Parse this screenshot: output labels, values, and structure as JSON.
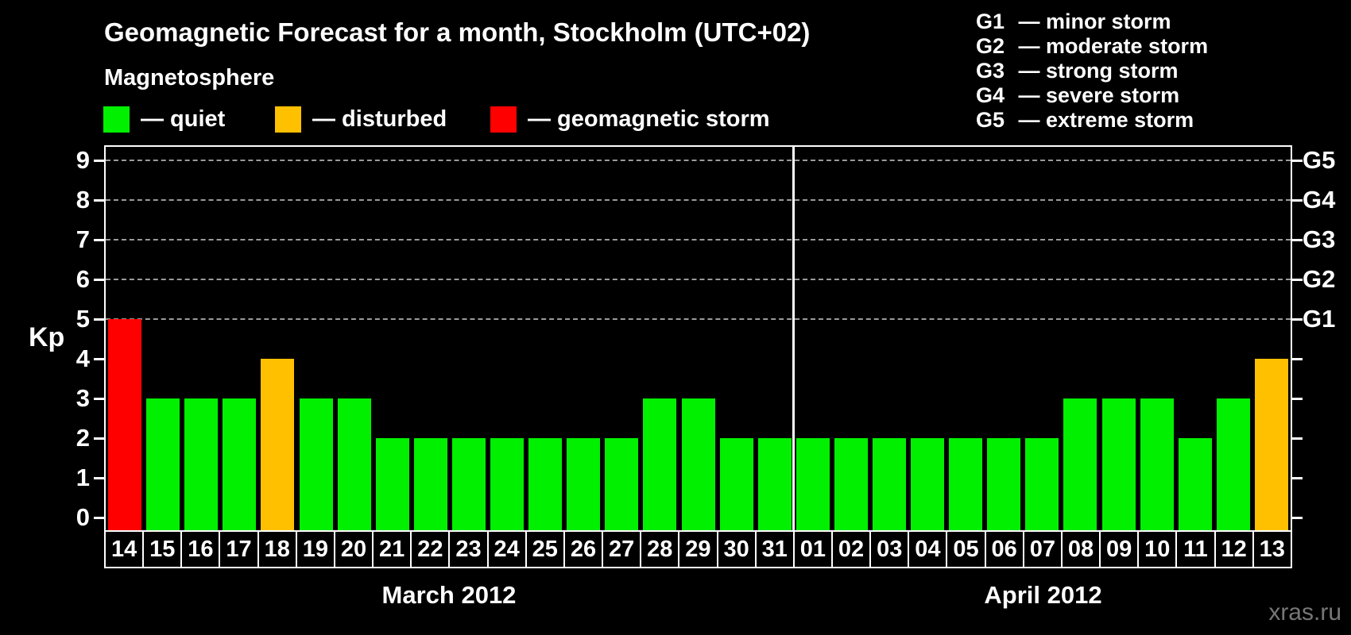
{
  "title": "Geomagnetic Forecast for a month, Stockholm (UTC+02)",
  "subtitle": "Magnetosphere",
  "legend": {
    "items": [
      {
        "label": "— quiet",
        "color": "#00f000"
      },
      {
        "label": "— disturbed",
        "color": "#ffc000"
      },
      {
        "label": "— geomagnetic storm",
        "color": "#ff0000"
      }
    ]
  },
  "g_legend": {
    "items": [
      {
        "code": "G1",
        "desc": "— minor storm"
      },
      {
        "code": "G2",
        "desc": "— moderate storm"
      },
      {
        "code": "G3",
        "desc": "— strong storm"
      },
      {
        "code": "G4",
        "desc": "— severe storm"
      },
      {
        "code": "G5",
        "desc": "— extreme storm"
      }
    ]
  },
  "axes": {
    "left_label": "Kp",
    "left_ticks": [
      "0",
      "1",
      "2",
      "3",
      "4",
      "5",
      "6",
      "7",
      "8",
      "9"
    ],
    "right_labels": [
      {
        "kp": 5,
        "label": "G1"
      },
      {
        "kp": 6,
        "label": "G2"
      },
      {
        "kp": 7,
        "label": "G3"
      },
      {
        "kp": 8,
        "label": "G4"
      },
      {
        "kp": 9,
        "label": "G5"
      }
    ]
  },
  "status_colors": {
    "quiet": "#00f000",
    "disturbed": "#ffc000",
    "storm": "#ff0000"
  },
  "chart_data": {
    "type": "bar",
    "title": "Geomagnetic Forecast for a month, Stockholm (UTC+02)",
    "xlabel": "",
    "ylabel": "Kp",
    "ylim": [
      0,
      9.4
    ],
    "grid": "dashed horizontal at Kp 5-9",
    "gridlines_kp": [
      5,
      6,
      7,
      8,
      9
    ],
    "months": [
      {
        "label": "March 2012",
        "days": 18
      },
      {
        "label": "April 2012",
        "days": 13
      }
    ],
    "categories": [
      "14",
      "15",
      "16",
      "17",
      "18",
      "19",
      "20",
      "21",
      "22",
      "23",
      "24",
      "25",
      "26",
      "27",
      "28",
      "29",
      "30",
      "31",
      "01",
      "02",
      "03",
      "04",
      "05",
      "06",
      "07",
      "08",
      "09",
      "10",
      "11",
      "12",
      "13"
    ],
    "values": [
      5,
      3,
      3,
      3,
      4,
      3,
      3,
      2,
      2,
      2,
      2,
      2,
      2,
      2,
      3,
      3,
      2,
      2,
      2,
      2,
      2,
      2,
      2,
      2,
      2,
      3,
      3,
      3,
      2,
      3,
      4
    ],
    "statuses": [
      "storm",
      "quiet",
      "quiet",
      "quiet",
      "disturbed",
      "quiet",
      "quiet",
      "quiet",
      "quiet",
      "quiet",
      "quiet",
      "quiet",
      "quiet",
      "quiet",
      "quiet",
      "quiet",
      "quiet",
      "quiet",
      "quiet",
      "quiet",
      "quiet",
      "quiet",
      "quiet",
      "quiet",
      "quiet",
      "quiet",
      "quiet",
      "quiet",
      "quiet",
      "quiet",
      "disturbed"
    ]
  },
  "watermark": "xras.ru"
}
